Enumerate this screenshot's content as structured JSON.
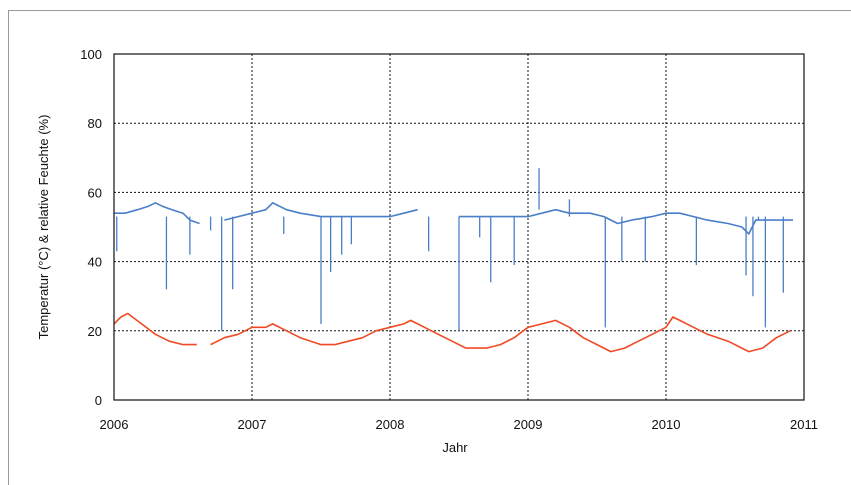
{
  "chart_data": {
    "type": "line",
    "title": "",
    "xlabel": "Jahr",
    "ylabel": "Temperatur (°C) & relative Feuchte (%)",
    "xlim": [
      2006,
      2011
    ],
    "ylim": [
      0,
      100
    ],
    "x_ticks": [
      "2006",
      "2007",
      "2008",
      "2009",
      "2010",
      "2011"
    ],
    "y_ticks": [
      "0",
      "20",
      "40",
      "60",
      "80",
      "100"
    ],
    "grid": true,
    "legend": "none",
    "colors": {
      "humidity": "#4a7ec8",
      "temperature": "#f04a24"
    },
    "series": [
      {
        "color": "#4a7ec8",
        "x": [
          2006.0,
          2006.08,
          2006.17,
          2006.25,
          2006.3,
          2006.35,
          2006.42,
          2006.5,
          2006.55,
          2006.62,
          2006.7,
          2006.8,
          2006.9,
          2007.0,
          2007.1,
          2007.15,
          2007.25,
          2007.35,
          2007.5,
          2007.6,
          2007.75,
          2007.9,
          2008.0,
          2008.1,
          2008.2,
          2008.4,
          2008.5,
          2008.6,
          2008.75,
          2008.9,
          2009.0,
          2009.1,
          2009.2,
          2009.3,
          2009.45,
          2009.55,
          2009.65,
          2009.75,
          2009.9,
          2010.0,
          2010.1,
          2010.2,
          2010.3,
          2010.45,
          2010.55,
          2010.6,
          2010.65,
          2010.75,
          2010.85,
          2010.92
        ],
        "y": [
          54,
          54,
          55,
          56,
          57,
          56,
          55,
          54,
          52,
          51,
          null,
          52,
          53,
          54,
          55,
          57,
          55,
          54,
          53,
          53,
          53,
          53,
          53,
          54,
          55,
          null,
          53,
          53,
          53,
          53,
          53,
          54,
          55,
          54,
          54,
          53,
          51,
          52,
          53,
          54,
          54,
          53,
          52,
          51,
          50,
          48,
          52,
          52,
          52,
          52
        ]
      },
      {
        "color": "#4a7ec8",
        "type": "spikes",
        "x": [
          2006.02,
          2006.38,
          2006.55,
          2006.7,
          2006.78,
          2006.86,
          2007.23,
          2007.5,
          2007.57,
          2007.65,
          2007.72,
          2008.28,
          2008.5,
          2008.65,
          2008.73,
          2008.9,
          2009.08,
          2009.3,
          2009.56,
          2009.68,
          2009.85,
          2010.22,
          2010.58,
          2010.63,
          2010.67,
          2010.72,
          2010.85
        ],
        "y": [
          43,
          32,
          42,
          49,
          20,
          32,
          48,
          22,
          37,
          42,
          45,
          43,
          20,
          47,
          34,
          39,
          67,
          58,
          21,
          40,
          40,
          39,
          36,
          30,
          52,
          21,
          31
        ]
      },
      {
        "color": "#f04a24",
        "x": [
          2006.0,
          2006.05,
          2006.1,
          2006.2,
          2006.3,
          2006.4,
          2006.5,
          2006.6,
          null,
          2006.7,
          2006.8,
          2006.9,
          2007.0,
          2007.1,
          2007.15,
          2007.25,
          2007.35,
          2007.5,
          2007.6,
          2007.7,
          2007.8,
          2007.9,
          2008.0,
          2008.1,
          2008.15,
          2008.25,
          2008.35,
          2008.45,
          2008.55,
          2008.7,
          2008.8,
          2008.9,
          2009.0,
          2009.1,
          2009.2,
          2009.3,
          2009.4,
          2009.5,
          2009.6,
          2009.7,
          2009.8,
          2009.9,
          2010.0,
          2010.05,
          2010.1,
          2010.2,
          2010.3,
          2010.45,
          2010.6,
          2010.7,
          2010.8,
          2010.9
        ],
        "y": [
          22,
          24,
          25,
          22,
          19,
          17,
          16,
          16,
          null,
          16,
          18,
          19,
          21,
          21,
          22,
          20,
          18,
          16,
          16,
          17,
          18,
          20,
          21,
          22,
          23,
          21,
          19,
          17,
          15,
          15,
          16,
          18,
          21,
          22,
          23,
          21,
          18,
          16,
          14,
          15,
          17,
          19,
          21,
          24,
          23,
          21,
          19,
          17,
          14,
          15,
          18,
          20
        ]
      }
    ]
  }
}
